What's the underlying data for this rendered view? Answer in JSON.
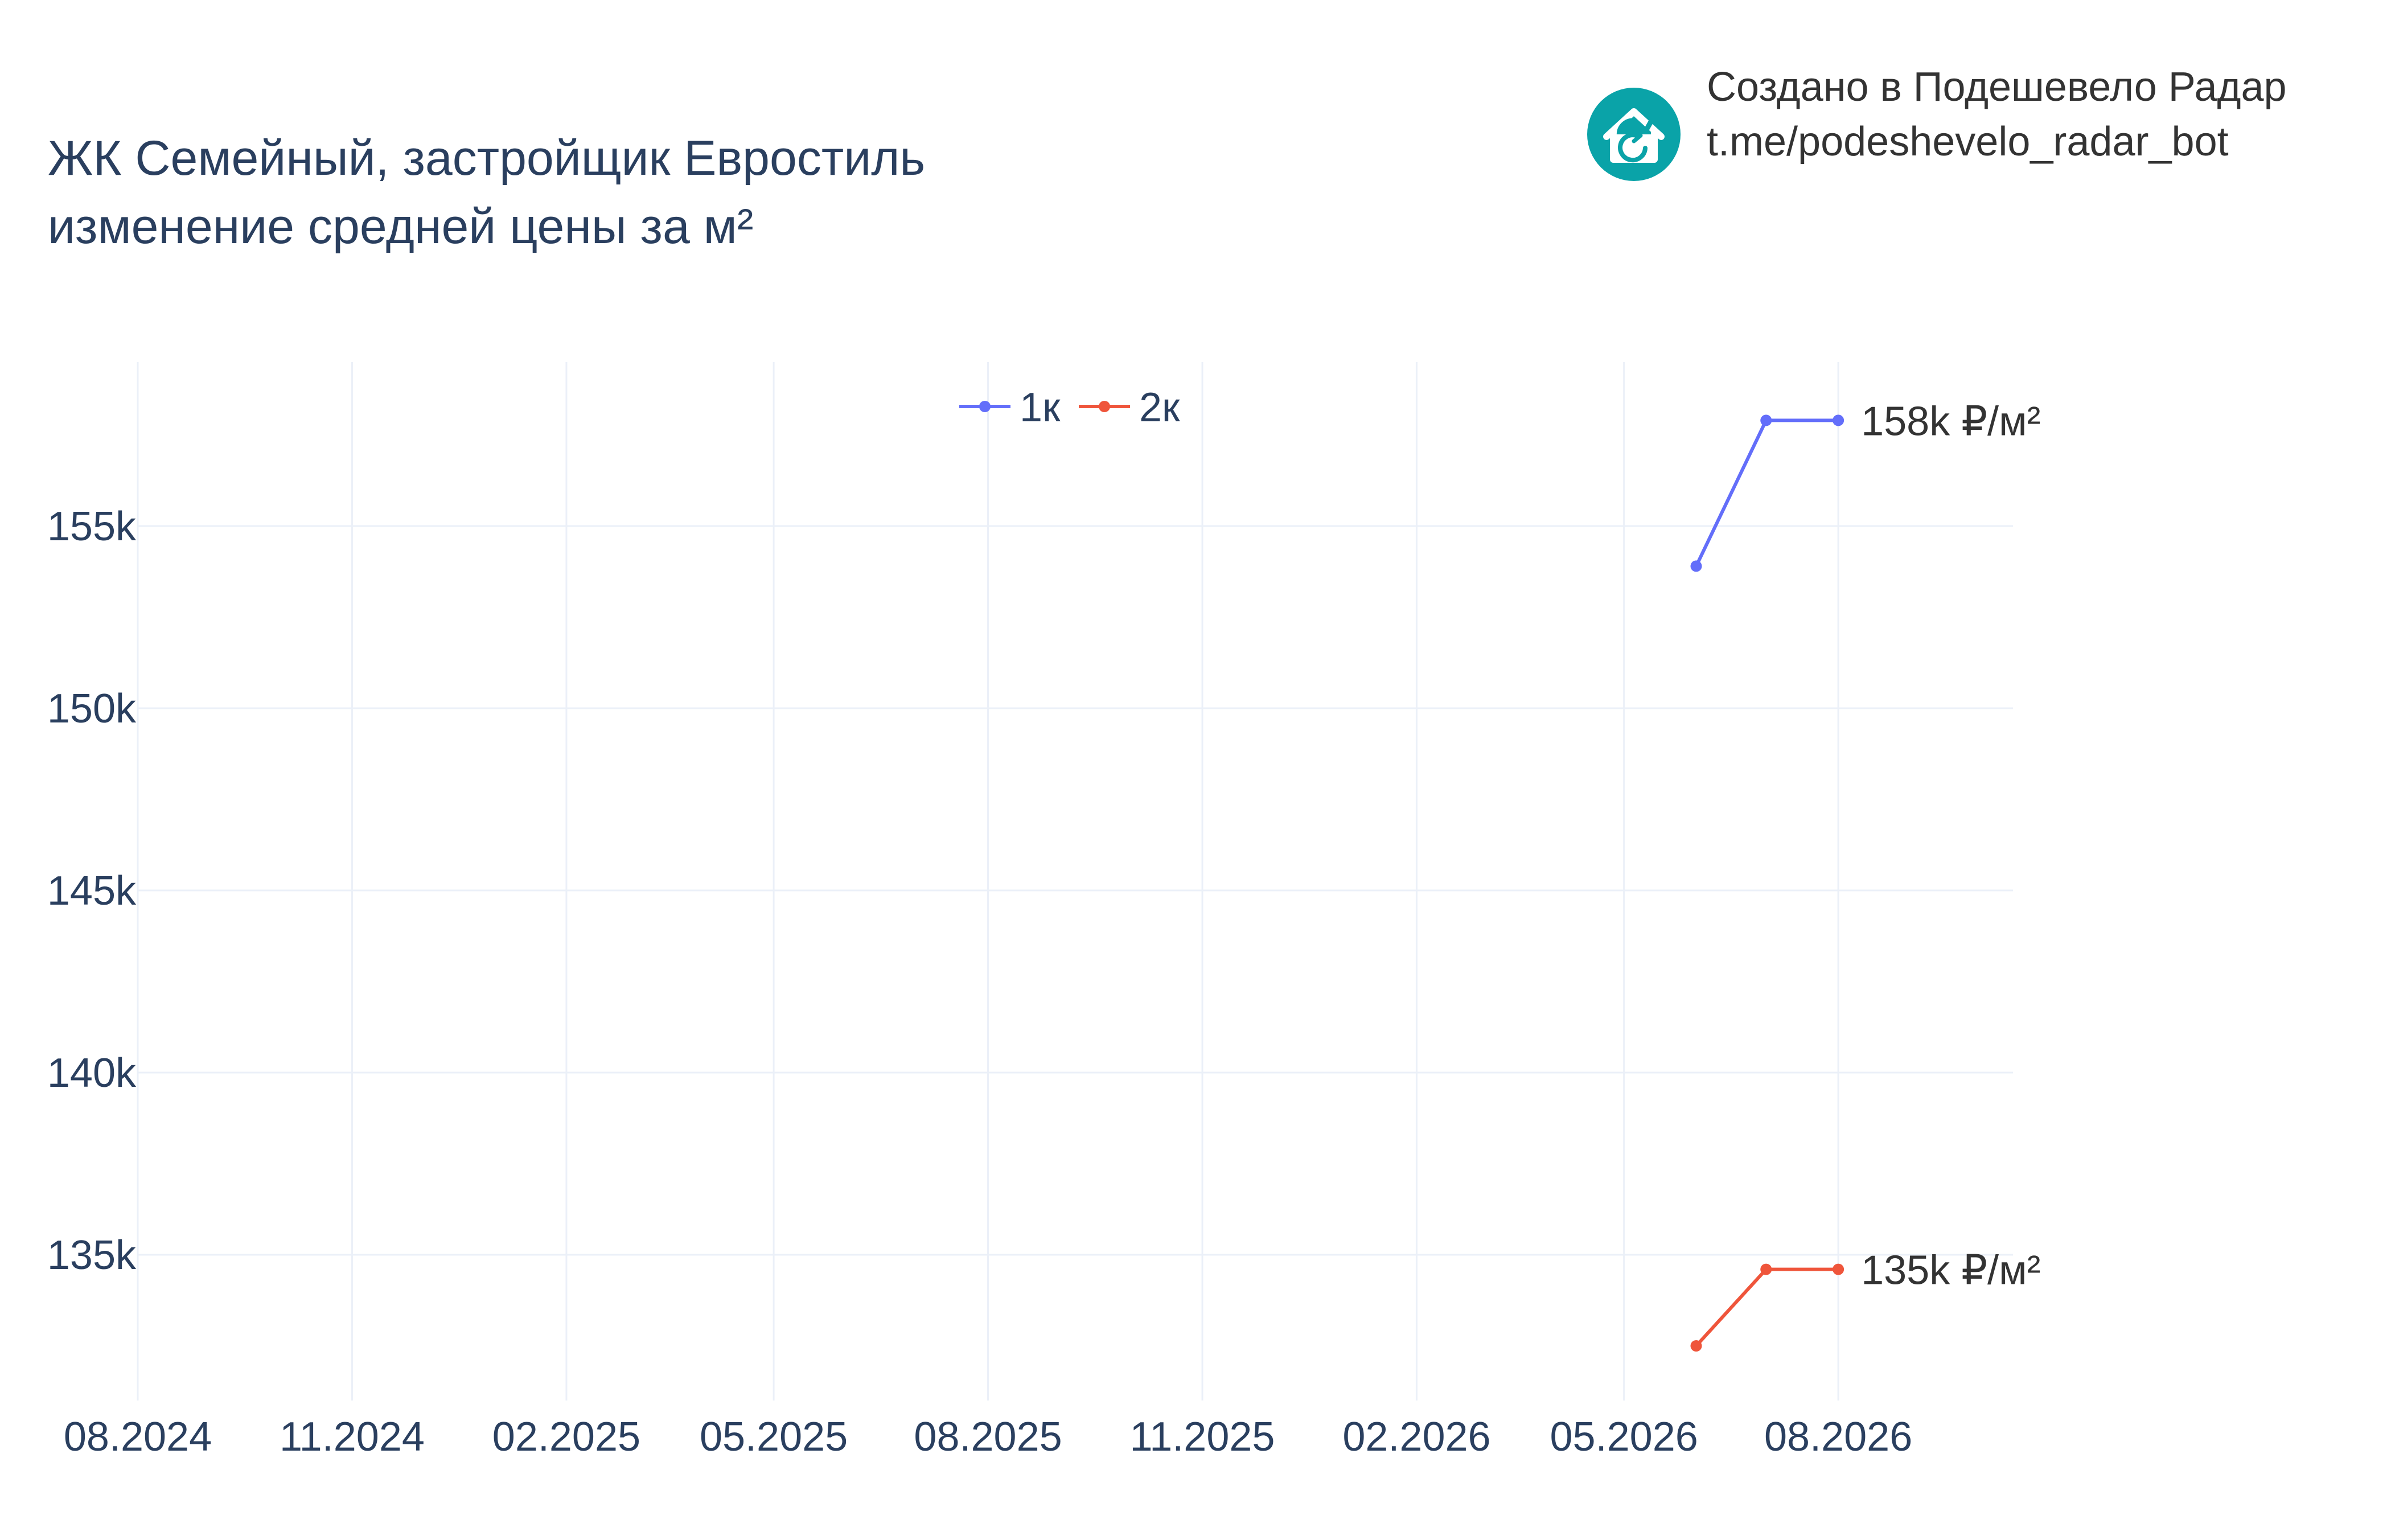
{
  "header": {
    "title_line1": "ЖК Семейный, застройщик Евростиль",
    "title_line2": "изменение средней цены за м²"
  },
  "branding": {
    "line1": "Создано в Подешевело Радар",
    "line2": "t.me/podeshevelo_radar_bot",
    "logo_icon": "house-refresh-icon",
    "logo_color": "#0aa3a8"
  },
  "chart_data": {
    "type": "line",
    "x_axis": {
      "type": "date",
      "range": [
        "2024-08-01",
        "2026-10-15"
      ],
      "ticks": [
        {
          "value": "2024-08-01",
          "label": "08.2024"
        },
        {
          "value": "2024-11-01",
          "label": "11.2024"
        },
        {
          "value": "2025-02-01",
          "label": "02.2025"
        },
        {
          "value": "2025-05-01",
          "label": "05.2025"
        },
        {
          "value": "2025-08-01",
          "label": "08.2025"
        },
        {
          "value": "2025-11-01",
          "label": "11.2025"
        },
        {
          "value": "2026-02-01",
          "label": "02.2026"
        },
        {
          "value": "2026-05-01",
          "label": "05.2026"
        },
        {
          "value": "2026-08-01",
          "label": "08.2026"
        }
      ]
    },
    "y_axis": {
      "range": [
        131000,
        159500
      ],
      "ticks": [
        {
          "value": 135000,
          "label": "135k"
        },
        {
          "value": 140000,
          "label": "140k"
        },
        {
          "value": 145000,
          "label": "145k"
        },
        {
          "value": 150000,
          "label": "150k"
        },
        {
          "value": 155000,
          "label": "155k"
        }
      ]
    },
    "grid": true,
    "legend": {
      "position": "top-center",
      "orientation": "horizontal"
    },
    "series": [
      {
        "name": "1к",
        "color": "#636efa",
        "points": [
          {
            "x": "2026-06-01",
            "y": 153900
          },
          {
            "x": "2026-07-01",
            "y": 157900
          },
          {
            "x": "2026-08-01",
            "y": 157900
          }
        ],
        "end_label": "158k ₽/м²"
      },
      {
        "name": "2к",
        "color": "#ef553b",
        "points": [
          {
            "x": "2026-06-01",
            "y": 132500
          },
          {
            "x": "2026-07-01",
            "y": 134600
          },
          {
            "x": "2026-08-01",
            "y": 134600
          }
        ],
        "end_label": "135k ₽/м²"
      }
    ]
  }
}
